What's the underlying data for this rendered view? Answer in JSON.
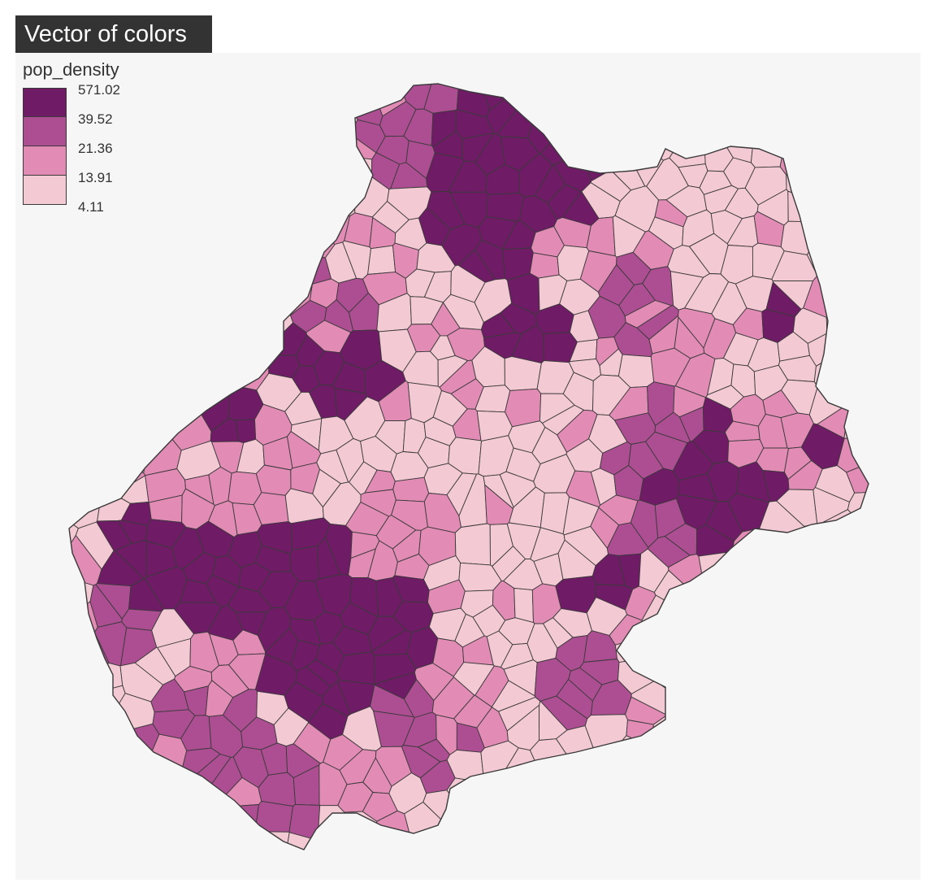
{
  "title": "Vector of colors",
  "legend": {
    "title": "pop_density",
    "breaks": [
      "571.02",
      "39.52",
      "21.36",
      "13.91",
      "4.11"
    ],
    "colors": [
      "#6f1b66",
      "#ad4e92",
      "#e28bb4",
      "#f3c9d4"
    ]
  },
  "map": {
    "background": "#f6f6f6",
    "border_color": "#3a3a3a"
  }
}
